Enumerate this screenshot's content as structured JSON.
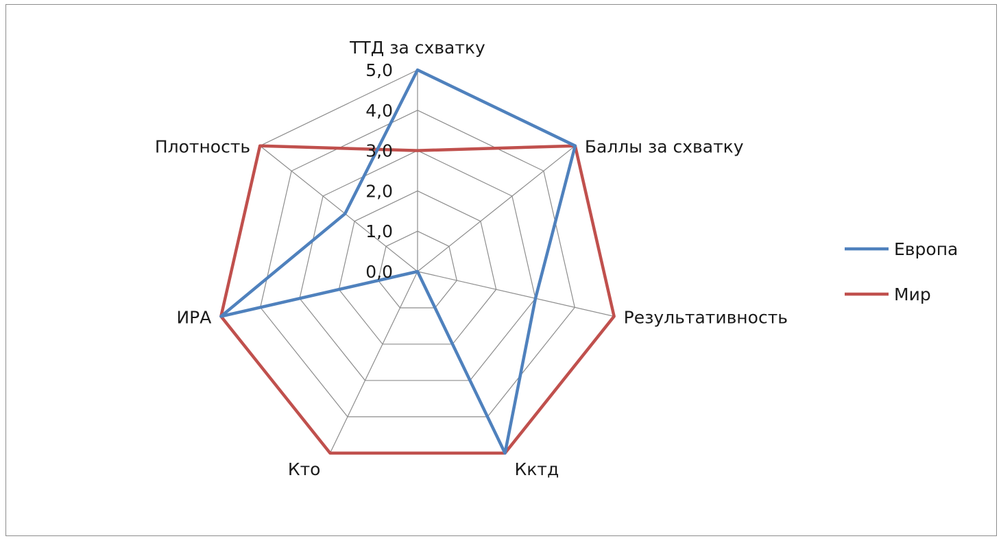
{
  "chart_data": {
    "type": "radar",
    "categories": [
      "ТТД за схватку",
      "Баллы за схватку",
      "Результативность",
      "Кктд",
      "Кто",
      "ИРА",
      "Плотность"
    ],
    "series": [
      {
        "name": "Европа",
        "color": "#4f81bd",
        "values": [
          5.0,
          5.0,
          3.0,
          5.0,
          0.0,
          5.0,
          2.3
        ]
      },
      {
        "name": "Мир",
        "color": "#c0504d",
        "values": [
          3.0,
          5.0,
          5.0,
          5.0,
          5.0,
          5.0,
          5.0
        ]
      }
    ],
    "rlim": [
      0,
      5
    ],
    "ticks": [
      "0,0",
      "1,0",
      "2,0",
      "3,0",
      "4,0",
      "5,0"
    ],
    "grid": true,
    "legend_position": "right"
  }
}
